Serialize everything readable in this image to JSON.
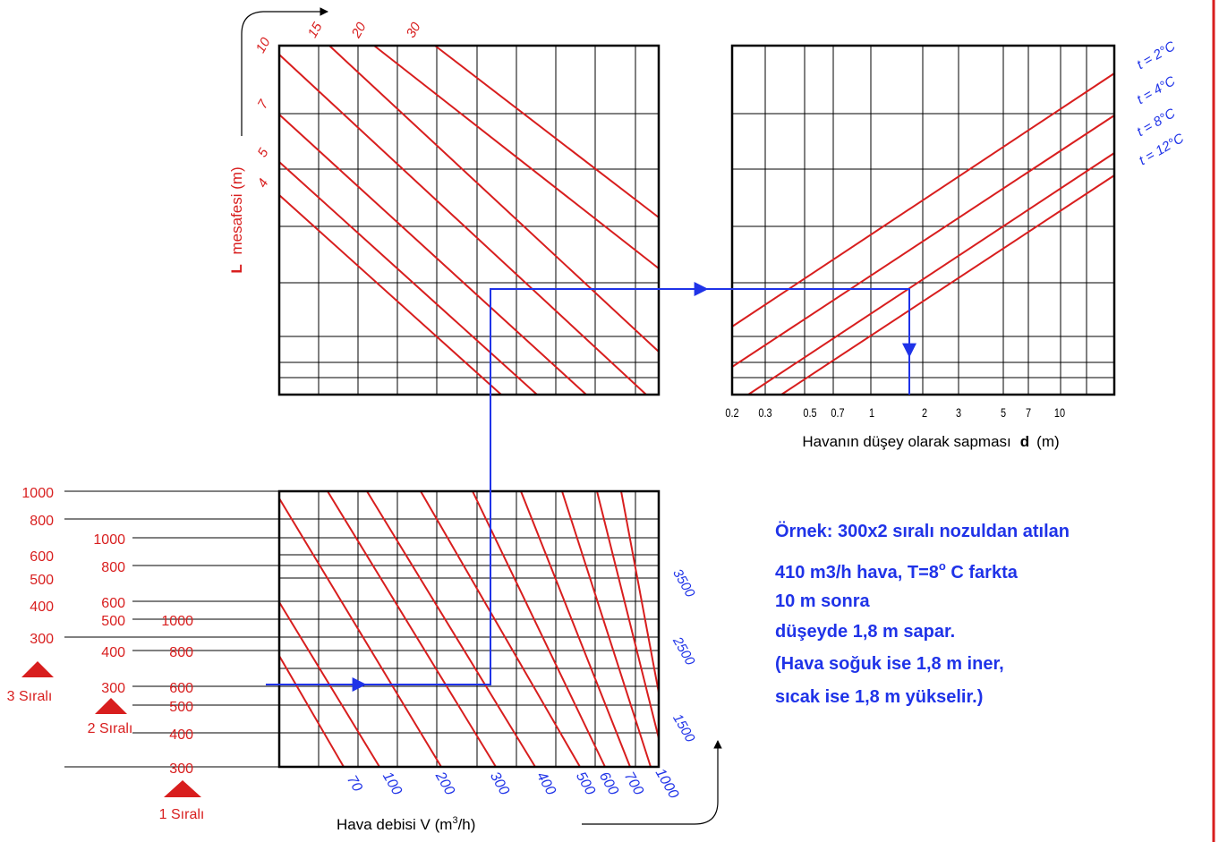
{
  "colors": {
    "curve": "#d81e1e",
    "example": "#1f33e8",
    "grid": "#000000",
    "label_red": "#d81e1e",
    "label_blue": "#1f33e8",
    "right_border": "#d81e1e"
  },
  "top_left": {
    "y_title_bold": "L",
    "y_title_rest": "mesafesi  (m)",
    "left_labels": [
      "10",
      "7",
      "5",
      "4"
    ],
    "top_labels": [
      "15",
      "20",
      "30"
    ]
  },
  "top_right": {
    "axis_title": "Havanın düşey olarak sapması",
    "axis_symbol": "d",
    "axis_unit": "(m)",
    "ticks": [
      "0.2",
      "0.3",
      "0.5",
      "0.7",
      "1",
      "2",
      "3",
      "5",
      "7",
      "10"
    ],
    "curves": [
      "t = 2°C",
      "t = 4°C",
      "t = 8°C",
      "t = 12°C"
    ]
  },
  "bottom": {
    "title_prefix": "Hava debisi  V (m",
    "title_exp": "3",
    "title_suffix": "/h)",
    "bottom_labels": [
      "70",
      "100",
      "200",
      "300",
      "400",
      "500",
      "600",
      "700",
      "1000"
    ],
    "right_labels": [
      "3500",
      "2500",
      "1500"
    ],
    "scale3_labels": [
      "1000",
      "800",
      "600",
      "500",
      "400",
      "300"
    ],
    "scale2_labels": [
      "1000",
      "800",
      "600",
      "500",
      "400",
      "300"
    ],
    "scale1_labels": [
      "1000",
      "800",
      "600",
      "500",
      "400",
      "300"
    ],
    "row_labels": [
      "3 Sıralı",
      "2 Sıralı",
      "1 Sıralı"
    ]
  },
  "example": {
    "lines": [
      "Örnek: 300x2 sıralı nozuldan atılan",
      "410 m3/h hava,   T=8",
      "10 m sonra",
      "düşeyde 1,8 m sapar.",
      "(Hava soğuk ise 1,8 m iner,",
      "sıcak ise 1,8 m yükselir.)"
    ],
    "line2_sup": "o",
    "line2_tail": " C farkta"
  }
}
